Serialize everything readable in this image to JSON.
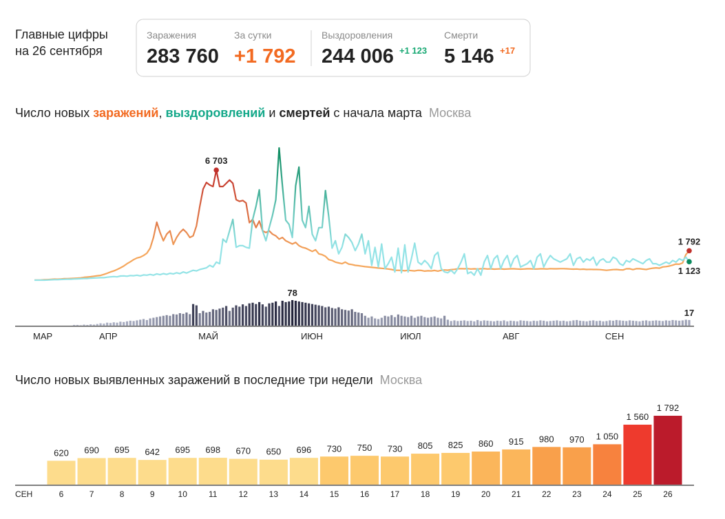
{
  "header": {
    "title": "Главные цифры",
    "date": "на 26 сентября"
  },
  "stats": [
    {
      "label": "Заражения",
      "value": "283 760"
    },
    {
      "label": "За сутки",
      "value": "+1 792"
    },
    {
      "label": "Выздоровления",
      "value": "244 006",
      "delta": "+1 123"
    },
    {
      "label": "Смерти",
      "value": "5 146",
      "delta": "+17"
    }
  ],
  "chart_data": [
    {
      "type": "line",
      "title_parts": [
        "Число новых ",
        ", ",
        " и ",
        " с начала марта"
      ],
      "region": "Москва",
      "categories": [
        "МАР",
        null,
        null,
        null,
        null,
        null,
        null,
        null,
        null,
        null,
        null,
        null,
        null,
        null,
        null,
        null,
        null,
        null,
        null,
        null,
        "АПР",
        null,
        null,
        null,
        null,
        null,
        null,
        null,
        null,
        null,
        null,
        null,
        null,
        null,
        null,
        null,
        null,
        null,
        null,
        null,
        null,
        null,
        null,
        null,
        null,
        null,
        null,
        null,
        null,
        null,
        "МАЙ",
        null,
        null,
        null,
        null,
        null,
        null,
        null,
        null,
        null,
        null,
        null,
        null,
        null,
        null,
        null,
        null,
        null,
        null,
        null,
        null,
        null,
        null,
        null,
        null,
        null,
        null,
        null,
        null,
        null,
        null,
        "ИЮН",
        null,
        null,
        null,
        null,
        null,
        null,
        null,
        null,
        null,
        null,
        null,
        null,
        null,
        null,
        null,
        null,
        null,
        null,
        null,
        null,
        null,
        null,
        null,
        null,
        null,
        null,
        null,
        null,
        null,
        "ИЮЛ",
        null,
        null,
        null,
        null,
        null,
        null,
        null,
        null,
        null,
        null,
        null,
        null,
        null,
        null,
        null,
        null,
        null,
        null,
        null,
        null,
        null,
        null,
        null,
        null,
        null,
        null,
        null,
        null,
        null,
        null,
        "АВГ",
        null,
        null,
        null,
        null,
        null,
        null,
        null,
        null,
        null,
        null,
        null,
        null,
        null,
        null,
        null,
        null,
        null,
        null,
        null,
        null,
        null,
        null,
        null,
        null,
        null,
        null,
        null,
        null,
        null,
        null,
        "СЕН",
        null,
        null,
        null,
        null,
        null,
        null,
        null,
        null,
        null,
        null,
        null,
        null,
        null,
        null,
        null,
        null,
        null,
        null,
        null,
        null,
        null,
        null,
        null,
        null,
        null
      ],
      "series": [
        {
          "name": "заражений",
          "color": "#f5a65b",
          "peak_color": "#c0302b",
          "legend_color": "#f26a21",
          "label_position": "above",
          "values": [
            6,
            10,
            13,
            24,
            33,
            45,
            61,
            60,
            72,
            86,
            90,
            100,
            110,
            120,
            140,
            170,
            190,
            210,
            240,
            270,
            290,
            350,
            420,
            500,
            560,
            650,
            750,
            860,
            1000,
            1120,
            1250,
            1350,
            1400,
            1500,
            1640,
            1950,
            2600,
            3530,
            2900,
            2400,
            2800,
            3000,
            2180,
            2600,
            2900,
            3100,
            2900,
            2600,
            2700,
            3300,
            4500,
            5550,
            5950,
            5800,
            5700,
            6703,
            5700,
            5700,
            5900,
            6100,
            5900,
            4900,
            4800,
            4850,
            4700,
            3500,
            3700,
            3200,
            3600,
            3000,
            2900,
            3000,
            2800,
            2700,
            2500,
            2600,
            2400,
            2300,
            2200,
            2300,
            2100,
            2000,
            1950,
            1850,
            1750,
            1850,
            1600,
            1550,
            1450,
            1250,
            1200,
            1100,
            1050,
            1000,
            1100,
            980,
            950,
            900,
            880,
            850,
            820,
            800,
            780,
            760,
            740,
            720,
            700,
            680,
            650,
            600,
            600,
            590,
            570,
            600,
            580,
            560,
            600,
            590,
            550,
            570,
            560,
            590,
            550,
            600,
            620,
            610,
            640,
            660,
            690,
            700,
            690,
            700,
            680,
            690,
            680,
            690,
            700,
            680,
            690,
            670,
            680,
            690,
            670,
            680,
            690,
            690,
            680,
            670,
            680,
            690,
            690,
            680,
            680,
            690,
            690,
            680,
            700,
            690,
            690,
            700,
            700,
            690,
            680,
            670,
            680,
            660,
            670,
            650,
            660,
            650,
            650,
            640,
            620,
            600,
            620,
            640,
            650,
            630,
            620,
            690,
            695,
            642,
            695,
            698,
            670,
            650,
            696,
            730,
            750,
            730,
            805,
            825,
            860,
            915,
            980,
            970,
            1050,
            1560,
            1792
          ],
          "value_labels": {
            "55": "6 703",
            "198": "1 792"
          }
        },
        {
          "name": "выздоровлений",
          "color": "#93e3e6",
          "peak_color": "#0b8a5e",
          "legend_color": "#13a889",
          "label_position": "below",
          "values": [
            0,
            0,
            0,
            0,
            10,
            20,
            30,
            30,
            40,
            50,
            60,
            60,
            70,
            80,
            90,
            100,
            100,
            120,
            130,
            140,
            150,
            150,
            180,
            200,
            220,
            200,
            250,
            260,
            240,
            280,
            270,
            300,
            260,
            320,
            300,
            350,
            300,
            380,
            330,
            400,
            350,
            420,
            380,
            450,
            400,
            500,
            430,
            520,
            600,
            560,
            650,
            700,
            750,
            900,
            800,
            1100,
            1000,
            2500,
            2300,
            3000,
            3700,
            2000,
            2100,
            2100,
            2000,
            1950,
            3700,
            4500,
            5500,
            3000,
            2400,
            3200,
            3950,
            4900,
            8050,
            5750,
            3650,
            3400,
            2600,
            5750,
            6890,
            3650,
            3200,
            4500,
            2800,
            2400,
            3200,
            3200,
            5460,
            3860,
            1950,
            2400,
            1600,
            2000,
            2800,
            2600,
            2300,
            1800,
            2200,
            2800,
            1600,
            2400,
            900,
            2000,
            800,
            2200,
            700,
            1000,
            1400,
            500,
            1950,
            450,
            2150,
            500,
            1300,
            2250,
            1100,
            950,
            1200,
            1000,
            700,
            1500,
            1700,
            700,
            500,
            450,
            600,
            400,
            700,
            1100,
            1600,
            400,
            500,
            300,
            700,
            300,
            1100,
            1500,
            700,
            1300,
            1500,
            700,
            1200,
            1500,
            800,
            1300,
            1500,
            800,
            900,
            1000,
            1200,
            700,
            1400,
            1600,
            800,
            1200,
            1500,
            1300,
            1200,
            1100,
            1200,
            1300,
            1600,
            900,
            1300,
            1400,
            1100,
            1300,
            1200,
            1400,
            900,
            1200,
            1300,
            1100,
            1100,
            1400,
            1300,
            1000,
            900,
            1200,
            1100,
            1300,
            1200,
            1100,
            1000,
            1200,
            1300,
            1000,
            1000,
            900,
            1000,
            1100,
            1000,
            1200,
            1100,
            1300,
            1200,
            1400,
            1123
          ],
          "value_labels": {
            "198": "1 123"
          }
        },
        {
          "name": "смертей",
          "type": "bar",
          "color": "#b3b8cc",
          "peak_color": "#22233a",
          "legend_color": "#222222",
          "values": [
            0,
            0,
            0,
            0,
            0,
            0,
            0,
            0,
            0,
            0,
            0,
            0,
            2,
            2,
            1,
            3,
            2,
            4,
            3,
            5,
            7,
            6,
            9,
            8,
            10,
            9,
            12,
            11,
            13,
            15,
            14,
            16,
            18,
            20,
            17,
            22,
            24,
            26,
            28,
            30,
            32,
            30,
            35,
            34,
            38,
            36,
            40,
            35,
            66,
            62,
            38,
            45,
            40,
            42,
            50,
            48,
            52,
            55,
            60,
            45,
            55,
            62,
            58,
            65,
            60,
            68,
            70,
            66,
            72,
            65,
            58,
            68,
            70,
            74,
            60,
            76,
            72,
            74,
            78,
            76,
            74,
            72,
            70,
            68,
            66,
            64,
            62,
            60,
            56,
            58,
            54,
            52,
            56,
            50,
            48,
            46,
            50,
            42,
            40,
            38,
            30,
            24,
            28,
            22,
            20,
            24,
            30,
            28,
            32,
            26,
            34,
            30,
            28,
            26,
            30,
            24,
            28,
            30,
            26,
            24,
            26,
            28,
            24,
            22,
            30,
            18,
            14,
            16,
            14,
            15,
            16,
            14,
            15,
            13,
            17,
            14,
            16,
            15,
            14,
            13,
            15,
            14,
            16,
            13,
            15,
            14,
            13,
            16,
            15,
            14,
            13,
            15,
            14,
            16,
            15,
            13,
            14,
            15,
            16,
            14,
            15,
            13,
            14,
            16,
            17,
            15,
            14,
            13,
            15,
            16,
            14,
            15,
            13,
            14,
            16,
            15,
            17,
            16,
            15,
            14,
            16,
            15,
            14,
            13,
            15,
            16,
            14,
            15,
            16,
            15,
            14,
            16,
            15,
            17,
            16,
            15,
            16,
            18,
            17
          ],
          "value_labels": {
            "78": "78",
            "198": "17"
          }
        }
      ]
    },
    {
      "type": "bar",
      "title": "Число новых выявленных заражений в последние три недели",
      "region": "Москва",
      "month": "СЕН",
      "categories": [
        "6",
        "7",
        "8",
        "9",
        "10",
        "11",
        "12",
        "13",
        "14",
        "15",
        "16",
        "17",
        "18",
        "19",
        "20",
        "21",
        "22",
        "23",
        "24",
        "25",
        "26"
      ],
      "values": [
        620,
        690,
        695,
        642,
        695,
        698,
        670,
        650,
        696,
        730,
        750,
        730,
        805,
        825,
        860,
        915,
        980,
        970,
        1050,
        1560,
        1792
      ],
      "value_labels": {
        "18": "1 050",
        "19": "1 560",
        "20": "1 792"
      },
      "colors": [
        "#fddc8c",
        "#fddc8c",
        "#fddc8c",
        "#fddc8c",
        "#fddc8c",
        "#fddc8c",
        "#fddc8c",
        "#fddc8c",
        "#fddc8c",
        "#fdc96d",
        "#fdc96d",
        "#fdc96d",
        "#fdc96d",
        "#fdc96d",
        "#fbb65b",
        "#fbb65b",
        "#f9a04b",
        "#f9a04b",
        "#f7823e",
        "#ee3a2d",
        "#bb1b2b"
      ],
      "category_colors": [
        "#e53935",
        "#333333",
        "#333333",
        "#333333",
        "#333333",
        "#333333",
        "#e53935",
        "#e53935",
        "#333333",
        "#333333",
        "#333333",
        "#333333",
        "#333333",
        "#e53935",
        "#e53935",
        "#333333",
        "#333333",
        "#333333",
        "#333333",
        "#333333",
        "#e53935"
      ]
    }
  ]
}
